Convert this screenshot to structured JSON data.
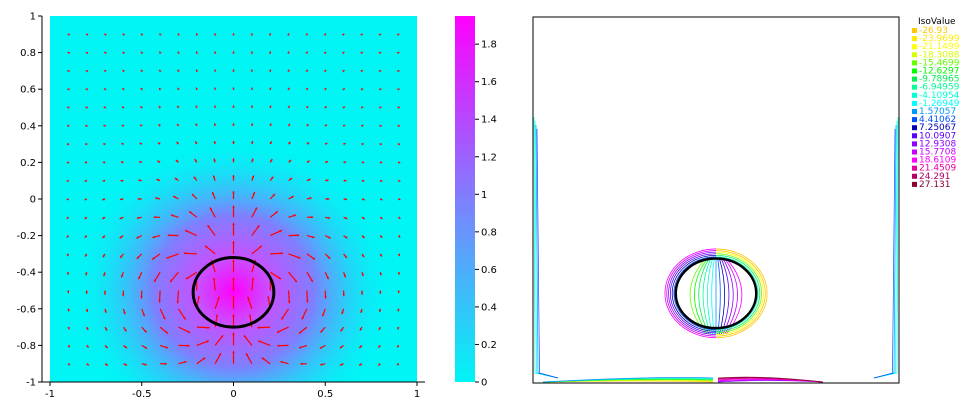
{
  "chart_data": [
    {
      "type": "heatmap",
      "title": "",
      "xlabel": "",
      "ylabel": "",
      "xlim": [
        -1,
        1
      ],
      "ylim": [
        -1,
        1
      ],
      "x_ticks": [
        "-1",
        "-0.5",
        "0",
        "0.5",
        "1"
      ],
      "y_ticks": [
        "1",
        "0.8",
        "0.6",
        "0.4",
        "0.2",
        "0",
        "-0.2",
        "-0.4",
        "-0.6",
        "-0.8",
        "-1"
      ],
      "colorbar": {
        "range": [
          0,
          1.95
        ],
        "ticks": [
          "1.8",
          "1.6",
          "1.4",
          "1.2",
          "1",
          "0.8",
          "0.6",
          "0.4",
          "0.2",
          "0"
        ],
        "colors": {
          "low": "#00f5f5",
          "mid": "#7f7fff",
          "high": "#ff00ff"
        }
      },
      "circle": {
        "center": [
          0,
          -0.51
        ],
        "radius_x": 0.22,
        "radius_y": 0.19,
        "color": "#000000"
      },
      "vector_color": "#ff0000",
      "peak": {
        "x": 0,
        "y": -0.5,
        "value": 1.95
      }
    },
    {
      "type": "contour",
      "legend_title": "IsoValue",
      "legend_position": "top-right",
      "levels": [
        {
          "label": "-26.93",
          "color": "#ffc800"
        },
        {
          "label": "-23.9699",
          "color": "#ffeb00"
        },
        {
          "label": "-21.1499",
          "color": "#ffff00"
        },
        {
          "label": "-18.3088",
          "color": "#d8ff00"
        },
        {
          "label": "-15.4699",
          "color": "#66ff00"
        },
        {
          "label": "-12.6297",
          "color": "#00ff00"
        },
        {
          "label": "-9.78965",
          "color": "#00f050"
        },
        {
          "label": "-6.94959",
          "color": "#00ff96"
        },
        {
          "label": "-4.10954",
          "color": "#00ffd2"
        },
        {
          "label": "-1.26949",
          "color": "#00ffff"
        },
        {
          "label": "1.57057",
          "color": "#0096ff"
        },
        {
          "label": "4.41062",
          "color": "#0050ff"
        },
        {
          "label": "7.25067",
          "color": "#0000b4"
        },
        {
          "label": "10.0907",
          "color": "#5a00ff"
        },
        {
          "label": "12.9308",
          "color": "#8c00ff"
        },
        {
          "label": "15.7708",
          "color": "#c800ff"
        },
        {
          "label": "18.6109",
          "color": "#ff00ff"
        },
        {
          "label": "21.4509",
          "color": "#e600a0"
        },
        {
          "label": "24.291",
          "color": "#b40064"
        },
        {
          "label": "27.131",
          "color": "#8c0032"
        }
      ],
      "circle": {
        "color": "#000000"
      }
    }
  ]
}
